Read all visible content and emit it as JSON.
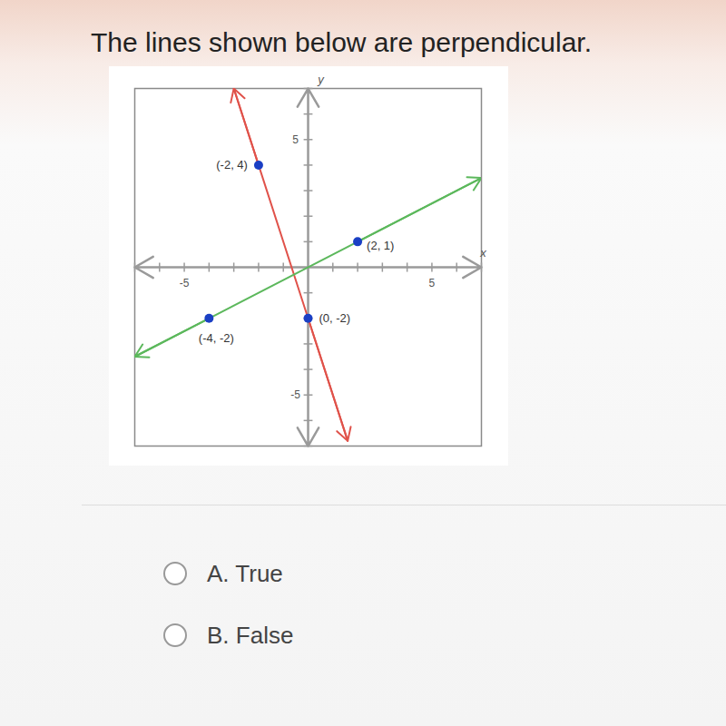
{
  "chart_data": {
    "type": "line",
    "title": "The lines shown below are perpendicular.",
    "x_label": "x",
    "y_label": "y",
    "xlim": [
      -7,
      7
    ],
    "ylim": [
      -7,
      7
    ],
    "xticks": [
      -5,
      5
    ],
    "yticks": [
      -5,
      5
    ],
    "series": [
      {
        "color": "#e0524a",
        "x": [
          -3,
          -2,
          0,
          1.6
        ],
        "values": [
          7,
          4,
          -2,
          -6.8
        ],
        "points": {
          "x": [
            -2,
            0
          ],
          "y": [
            4,
            -2
          ],
          "labels": [
            "(-2, 4)",
            "(0, -2)"
          ]
        }
      },
      {
        "color": "#5cb85c",
        "x": [
          -7,
          -4,
          2,
          7
        ],
        "values": [
          -3.5,
          -2,
          1,
          3.5
        ],
        "points": {
          "x": [
            -4,
            2
          ],
          "y": [
            -2,
            1
          ],
          "labels": [
            "(-4, -2)",
            "(2, 1)"
          ]
        }
      }
    ],
    "annotations": [
      "A. True",
      "B. False"
    ]
  }
}
